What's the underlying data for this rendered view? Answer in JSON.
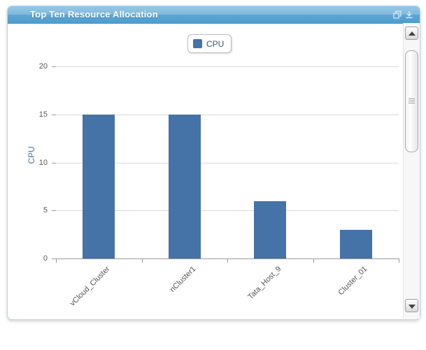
{
  "header": {
    "title": "Top Ten Resource Allocation"
  },
  "legend": {
    "items": [
      {
        "label": "CPU",
        "color": "#4572A7"
      }
    ]
  },
  "chart_data": {
    "type": "bar",
    "title": "Top Ten Resource Allocation",
    "categories": [
      "vCloud_Cluster",
      "nCluster1",
      "Tata_Host_9",
      "Cluster_01"
    ],
    "series": [
      {
        "name": "CPU",
        "color": "#4572A7",
        "values": [
          15,
          15,
          6,
          3
        ]
      }
    ],
    "xlabel": "",
    "ylabel": "CPU",
    "yticks": [
      0,
      5,
      10,
      15,
      20
    ],
    "ylim": [
      0,
      20
    ],
    "grid": "horizontal",
    "legend_position": "top-center"
  },
  "colors": {
    "bar": "#4572A7",
    "header_top": "#96c8e4",
    "header_bottom": "#4f9ccd",
    "widget_border": "#b4d6ec",
    "gridline": "#d9d9d9",
    "axis_line": "#9a9a9a",
    "tick_label": "#555555",
    "y_axis_title": "#4a74a4"
  }
}
